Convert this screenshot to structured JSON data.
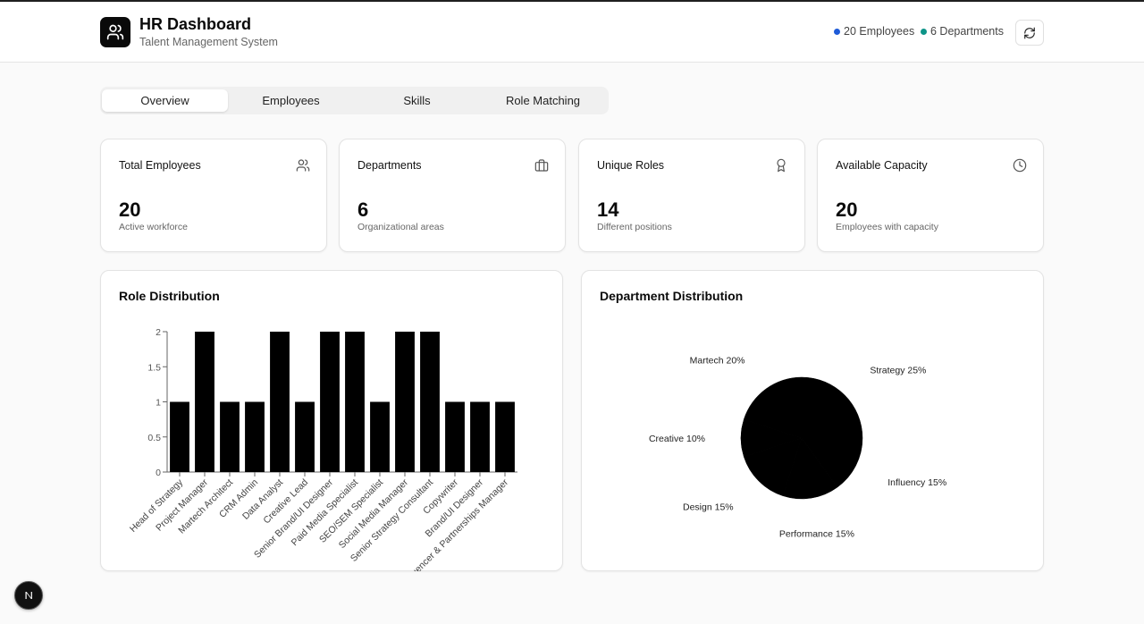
{
  "header": {
    "title": "HR Dashboard",
    "subtitle": "Talent Management System",
    "employees_badge": "20 Employees",
    "departments_badge": "6 Departments",
    "employees_dot_color": "#1e5bd8",
    "departments_dot_color": "#0d9488"
  },
  "tabs": [
    "Overview",
    "Employees",
    "Skills",
    "Role Matching"
  ],
  "stats": [
    {
      "title": "Total Employees",
      "value": "20",
      "desc": "Active workforce",
      "icon": "users-icon"
    },
    {
      "title": "Departments",
      "value": "6",
      "desc": "Organizational areas",
      "icon": "briefcase-icon"
    },
    {
      "title": "Unique Roles",
      "value": "14",
      "desc": "Different positions",
      "icon": "award-icon"
    },
    {
      "title": "Available Capacity",
      "value": "20",
      "desc": "Employees with capacity",
      "icon": "clock-icon"
    }
  ],
  "role_panel": {
    "title": "Role Distribution"
  },
  "dept_panel": {
    "title": "Department Distribution"
  },
  "chart_data": [
    {
      "type": "bar",
      "title": "Role Distribution",
      "categories": [
        "Head of Strategy",
        "Project Manager",
        "Martech Architect",
        "CRM Admin",
        "Data Analyst",
        "Creative Lead",
        "Senior Brand/UI Designer",
        "Paid Media Specialist",
        "SEO/SEM Specialist",
        "Social Media Manager",
        "Senior Strategy Consultant",
        "Copywriter",
        "Brand/UI Designer",
        "Influencer & Partnerships Manager"
      ],
      "values": [
        1,
        2,
        1,
        1,
        2,
        1,
        2,
        2,
        1,
        2,
        2,
        1,
        1,
        1
      ],
      "yticks": [
        "0",
        "0.5",
        "1",
        "1.5",
        "2"
      ],
      "ylim": [
        0,
        2
      ],
      "bar_color": "#000000"
    },
    {
      "type": "pie",
      "title": "Department Distribution",
      "labels": [
        "Strategy 25%",
        "Influency 15%",
        "Performance 15%",
        "Design 15%",
        "Creative 10%",
        "Martech 20%"
      ],
      "values": [
        25,
        15,
        15,
        15,
        10,
        20
      ],
      "fill_color": "#000000"
    }
  ]
}
